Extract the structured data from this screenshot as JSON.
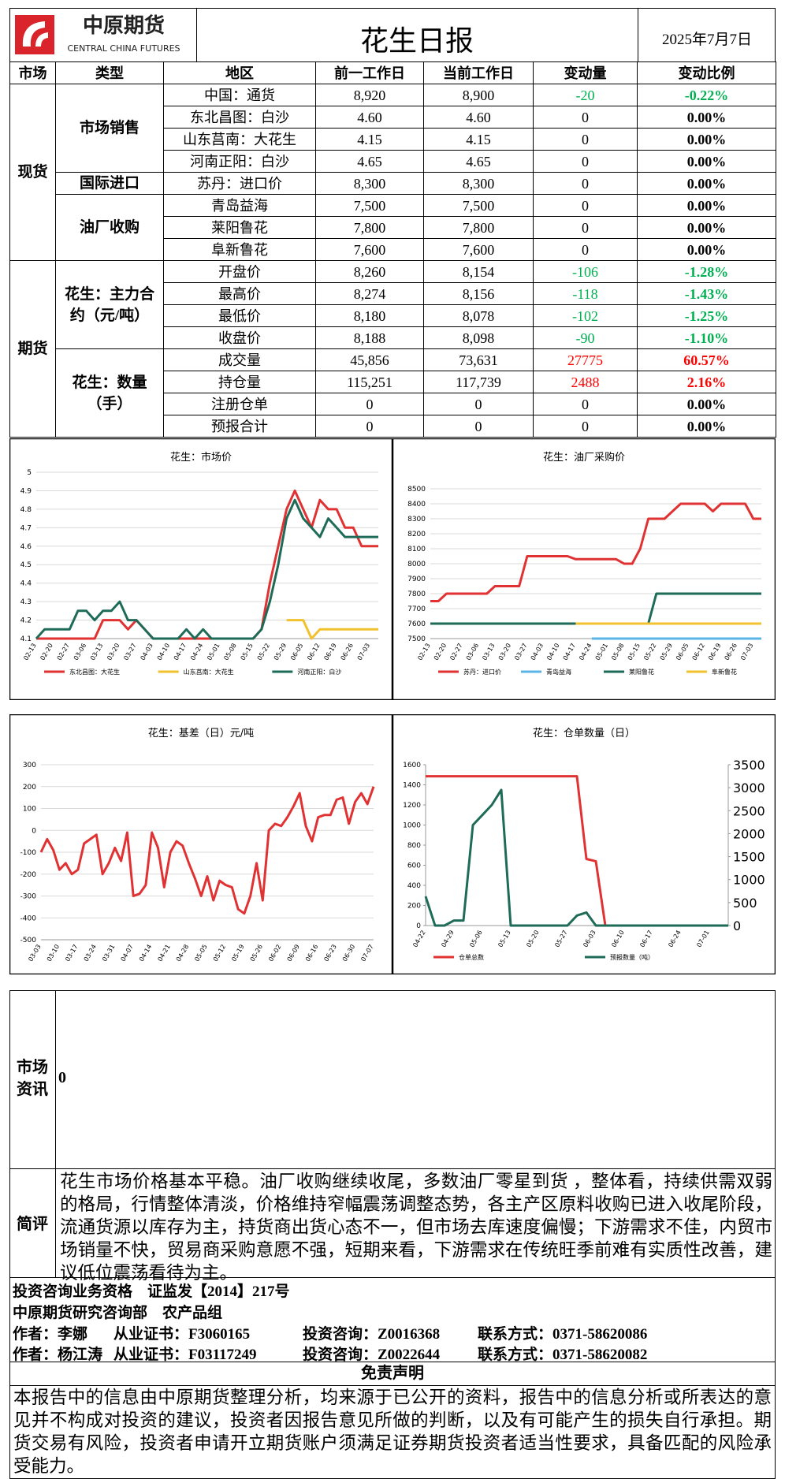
{
  "header": {
    "logo": "中原期货",
    "logo_en": "CENTRAL CHINA FUTURES",
    "title": "花生日报",
    "date": "2025年7月7日"
  },
  "table": {
    "columns": [
      "市场",
      "类型",
      "地区",
      "前一工作日",
      "当前工作日",
      "变动量",
      "变动比例"
    ],
    "sections": [
      {
        "market": "现货",
        "groups": [
          {
            "type": "市场销售",
            "rows": [
              [
                "中国：通货",
                "8,920",
                "8,900",
                "-20",
                "-0.22%"
              ],
              [
                "东北昌图：白沙",
                "4.60",
                "4.60",
                "0",
                "0.00%"
              ],
              [
                "山东莒南：大花生",
                "4.15",
                "4.15",
                "0",
                "0.00%"
              ],
              [
                "河南正阳：白沙",
                "4.65",
                "4.65",
                "0",
                "0.00%"
              ]
            ]
          },
          {
            "type": "国际进口",
            "rows": [
              [
                "苏丹：进口价",
                "8,300",
                "8,300",
                "0",
                "0.00%"
              ]
            ]
          },
          {
            "type": "油厂收购",
            "rows": [
              [
                "青岛益海",
                "7,500",
                "7,500",
                "0",
                "0.00%"
              ],
              [
                "莱阳鲁花",
                "7,800",
                "7,800",
                "0",
                "0.00%"
              ],
              [
                "阜新鲁花",
                "7,600",
                "7,600",
                "0",
                "0.00%"
              ]
            ]
          }
        ]
      },
      {
        "market": "期货",
        "groups": [
          {
            "type": "花生：主力合约（元/吨）",
            "rows": [
              [
                "开盘价",
                "8,260",
                "8,154",
                "-106",
                "-1.28%"
              ],
              [
                "最高价",
                "8,274",
                "8,156",
                "-118",
                "-1.43%"
              ],
              [
                "最低价",
                "8,180",
                "8,078",
                "-102",
                "-1.25%"
              ],
              [
                "收盘价",
                "8,188",
                "8,098",
                "-90",
                "-1.10%"
              ]
            ]
          },
          {
            "type": "花生：数量（手）",
            "rows": [
              [
                "成交量",
                "45,856",
                "73,631",
                "27775",
                "60.57%"
              ],
              [
                "持仓量",
                "115,251",
                "117,739",
                "2488",
                "2.16%"
              ],
              [
                "注册仓单",
                "0",
                "0",
                "0",
                "0.00%"
              ],
              [
                "预报合计",
                "0",
                "0",
                "0",
                "0.00%"
              ]
            ]
          }
        ]
      }
    ]
  },
  "chart_data": [
    {
      "type": "line",
      "title": "花生：市场价",
      "grid": true,
      "categories": [
        "02-13",
        null,
        "02-20",
        null,
        "02-27",
        null,
        "03-06",
        null,
        "03-13",
        null,
        "03-20",
        null,
        "03-27",
        null,
        "04-03",
        null,
        "04-10",
        null,
        "04-17",
        null,
        "04-24",
        null,
        "05-01",
        null,
        "05-08",
        null,
        "05-15",
        null,
        "05-22",
        null,
        "05-29",
        null,
        "06-05",
        null,
        "06-12",
        null,
        "06-19",
        null,
        "06-26",
        null,
        "07-03",
        null
      ],
      "ylim": [
        4.1,
        5
      ],
      "yticks": [
        4.1,
        4.2,
        4.3,
        4.4,
        4.5,
        4.6,
        4.7,
        4.8,
        4.9,
        5
      ],
      "series": [
        {
          "name": "东北昌图：大花生",
          "color": "#e03232",
          "values": [
            4.1,
            4.1,
            4.1,
            4.1,
            4.1,
            4.1,
            4.1,
            4.1,
            4.2,
            4.2,
            4.2,
            4.15,
            4.2,
            4.15,
            4.1,
            4.1,
            4.1,
            4.1,
            4.1,
            4.1,
            4.1,
            4.1,
            4.1,
            4.1,
            4.1,
            4.1,
            4.1,
            4.15,
            4.4,
            4.6,
            4.8,
            4.9,
            4.8,
            4.7,
            4.85,
            4.8,
            4.8,
            4.7,
            4.7,
            4.6,
            4.6,
            4.6
          ]
        },
        {
          "name": "山东莒南：大花生",
          "color": "#f2c12e",
          "values": [
            null,
            null,
            null,
            null,
            null,
            null,
            null,
            null,
            null,
            null,
            null,
            null,
            null,
            null,
            null,
            null,
            null,
            null,
            null,
            null,
            null,
            null,
            null,
            null,
            null,
            null,
            null,
            null,
            null,
            null,
            4.2,
            4.2,
            4.2,
            4.1,
            4.15,
            4.15,
            4.15,
            4.15,
            4.15,
            4.15,
            4.15,
            4.15
          ]
        },
        {
          "name": "河南正阳：白沙",
          "color": "#1e6b58",
          "values": [
            4.1,
            4.15,
            4.15,
            4.15,
            4.15,
            4.25,
            4.25,
            4.2,
            4.25,
            4.25,
            4.3,
            4.2,
            4.2,
            4.15,
            4.1,
            4.1,
            4.1,
            4.1,
            4.15,
            4.1,
            4.15,
            4.1,
            4.1,
            4.1,
            4.1,
            4.1,
            4.1,
            4.15,
            4.3,
            4.5,
            4.75,
            4.85,
            4.75,
            4.7,
            4.65,
            4.75,
            4.7,
            4.65,
            4.65,
            4.65,
            4.65,
            4.65
          ]
        }
      ]
    },
    {
      "type": "line",
      "title": "花生：油厂采购价",
      "grid": true,
      "categories": [
        "02-13",
        null,
        "02-20",
        null,
        "02-27",
        null,
        "03-06",
        null,
        "03-13",
        null,
        "03-20",
        null,
        "03-27",
        null,
        "04-03",
        null,
        "04-10",
        null,
        "04-17",
        null,
        "04-24",
        null,
        "05-01",
        null,
        "05-08",
        null,
        "05-15",
        null,
        "05-22",
        null,
        "05-29",
        null,
        "06-05",
        null,
        "06-12",
        null,
        "06-19",
        null,
        "06-26",
        null,
        "07-03",
        null
      ],
      "ylim": [
        7500,
        8500
      ],
      "yticks": [
        7500,
        7600,
        7700,
        7800,
        7900,
        8000,
        8100,
        8200,
        8300,
        8400,
        8500
      ],
      "series": [
        {
          "name": "苏丹：进口价",
          "color": "#e03232",
          "values": [
            7750,
            7750,
            7800,
            7800,
            7800,
            7800,
            7800,
            7800,
            7850,
            7850,
            7850,
            7850,
            8050,
            8050,
            8050,
            8050,
            8050,
            8050,
            8030,
            8030,
            8030,
            8030,
            8030,
            8030,
            8000,
            8000,
            8100,
            8300,
            8300,
            8300,
            8350,
            8400,
            8400,
            8400,
            8400,
            8350,
            8400,
            8400,
            8400,
            8400,
            8300,
            8300
          ]
        },
        {
          "name": "青岛益海",
          "color": "#5ab4e6",
          "values": [
            null,
            null,
            null,
            null,
            null,
            null,
            null,
            null,
            null,
            null,
            null,
            null,
            null,
            null,
            null,
            null,
            null,
            null,
            null,
            null,
            7500,
            7500,
            7500,
            7500,
            7500,
            7500,
            7500,
            7500,
            7500,
            7500,
            7500,
            7500,
            7500,
            7500,
            7500,
            7500,
            7500,
            7500,
            7500,
            7500,
            7500,
            7500
          ]
        },
        {
          "name": "莱阳鲁花",
          "color": "#1e6b58",
          "values": [
            7600,
            7600,
            7600,
            7600,
            7600,
            7600,
            7600,
            7600,
            7600,
            7600,
            7600,
            7600,
            7600,
            7600,
            7600,
            7600,
            7600,
            7600,
            7600,
            7600,
            7600,
            7600,
            7600,
            7600,
            7600,
            7600,
            7600,
            7600,
            7800,
            7800,
            7800,
            7800,
            7800,
            7800,
            7800,
            7800,
            7800,
            7800,
            7800,
            7800,
            7800,
            7800
          ]
        },
        {
          "name": "阜新鲁花",
          "color": "#f2c12e",
          "values": [
            null,
            null,
            null,
            null,
            null,
            null,
            null,
            null,
            null,
            null,
            null,
            null,
            null,
            null,
            null,
            null,
            null,
            null,
            7600,
            7600,
            7600,
            7600,
            7600,
            7600,
            7600,
            7600,
            7600,
            7600,
            7600,
            7600,
            7600,
            7600,
            7600,
            7600,
            7600,
            7600,
            7600,
            7600,
            7600,
            7600,
            7600,
            7600
          ]
        }
      ]
    },
    {
      "type": "line",
      "title": "花生：基差（日）元/吨",
      "grid": true,
      "color": "#e03232",
      "categories": [
        "03-03",
        null,
        null,
        "03-10",
        null,
        null,
        "03-17",
        null,
        null,
        "03-24",
        null,
        null,
        "03-31",
        null,
        null,
        "04-07",
        null,
        null,
        "04-14",
        null,
        null,
        "04-21",
        null,
        null,
        "04-28",
        null,
        null,
        "05-05",
        null,
        null,
        "05-12",
        null,
        null,
        "05-19",
        null,
        null,
        "05-26",
        null,
        null,
        "06-02",
        null,
        null,
        "06-09",
        null,
        null,
        "06-16",
        null,
        null,
        "06-23",
        null,
        null,
        "06-30",
        null,
        null,
        "07-07"
      ],
      "ylim": [
        -500,
        300
      ],
      "yticks": [
        -500,
        -400,
        -300,
        -200,
        -100,
        0,
        100,
        200,
        300
      ],
      "values": [
        -100,
        -40,
        -90,
        -180,
        -150,
        -200,
        -180,
        -60,
        -40,
        -20,
        -200,
        -150,
        -80,
        -140,
        -10,
        -300,
        -290,
        -250,
        -10,
        -80,
        -260,
        -100,
        -50,
        -70,
        -150,
        -220,
        -300,
        -210,
        -320,
        -230,
        -250,
        -260,
        -360,
        -380,
        -300,
        -150,
        -320,
        0,
        30,
        20,
        60,
        110,
        170,
        20,
        -50,
        60,
        70,
        70,
        140,
        150,
        30,
        130,
        170,
        120,
        200
      ]
    },
    {
      "type": "line",
      "title": "花生：仓单数量（日）",
      "grid": false,
      "categories": [
        "04-22",
        null,
        null,
        "04-29",
        null,
        null,
        "05-06",
        null,
        null,
        "05-13",
        null,
        null,
        "05-20",
        null,
        null,
        "05-27",
        null,
        null,
        "06-03",
        null,
        null,
        "06-10",
        null,
        null,
        "06-17",
        null,
        null,
        "06-24",
        null,
        null,
        "07-01",
        null,
        null
      ],
      "ylim": [
        0,
        1600
      ],
      "yticks": [
        0,
        200,
        400,
        600,
        800,
        1000,
        1200,
        1400,
        1600
      ],
      "y2lim": [
        0,
        3500
      ],
      "y2ticks": [
        0,
        500,
        1000,
        1500,
        2000,
        2500,
        3000,
        3500
      ],
      "series": [
        {
          "name": "仓单总数",
          "color": "#e03232",
          "axis": "y2",
          "values": [
            3250,
            3250,
            3250,
            3250,
            3250,
            3250,
            3250,
            3250,
            3250,
            3250,
            3250,
            3250,
            3250,
            3250,
            3250,
            3250,
            3250,
            1450,
            1400,
            0,
            0,
            0,
            0,
            0,
            0,
            0,
            0,
            0,
            0,
            0,
            0,
            0,
            0
          ]
        },
        {
          "name": "预报数量（吨）",
          "color": "#1e6b58",
          "values": [
            290,
            0,
            0,
            50,
            50,
            1000,
            1100,
            1200,
            1350,
            0,
            0,
            0,
            0,
            0,
            0,
            0,
            100,
            130,
            0,
            0,
            0,
            0,
            0,
            0,
            0,
            0,
            0,
            0,
            0,
            0,
            0,
            0,
            0
          ]
        }
      ]
    }
  ],
  "info": {
    "label": "市场资讯",
    "text": "0"
  },
  "comment": {
    "label": "简评",
    "text": "花生市场价格基本平稳。油厂收购继续收尾，多数油厂零星到货 ，整体看，持续供需双弱的格局，行情整体清淡，价格维持窄幅震荡调整态势，各主产区原料收购已进入收尾阶段，流通货源以库存为主，持货商出货心态不一，但市场去库速度偏慢；下游需求不佳，内贸市场销量不快，贸易商采购意愿不强，短期来看，下游需求在传统旺季前难有实质性改善，建议低位震荡看待为主。"
  },
  "footer": {
    "qualification": "投资咨询业务资格　证监发【2014】217号",
    "dept": "中原期货研究咨询部　农产品组",
    "authors": [
      [
        "作者：李娜",
        "从业证书：F3060165",
        "投资咨询：Z0016368",
        "联系方式：0371-58620086"
      ],
      [
        "作者：杨江涛",
        "从业证书：F03117249",
        "投资咨询：Z0022644",
        "联系方式：0371-58620082"
      ]
    ]
  },
  "disclaimer": {
    "title": "免责声明",
    "text": "本报告中的信息由中原期货整理分析，均来源于已公开的资料，报告中的信息分析或所表达的意见并不构成对投资的建议，投资者因报告意见所做的判断，以及有可能产生的损失自行承担。期货交易有风险，投资者申请开立期货账户须满足证券期货投资者适当性要求，具备匹配的风险承受能力。"
  }
}
